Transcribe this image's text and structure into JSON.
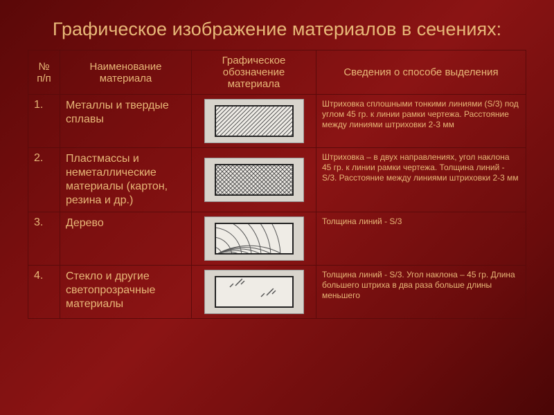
{
  "title": "Графическое изображение материалов в сечениях:",
  "colors": {
    "title_text": "#e8b878",
    "cell_text": "#e8b878",
    "border": "#5a0a0a",
    "swatch_bg": "#efece6",
    "swatch_frame": "#d8d4cc",
    "swatch_border": "#222222",
    "hatch_line": "#555555"
  },
  "columns": [
    "№ п/п",
    "Наименование материала",
    "Графическое обозначение материала",
    "Сведения о способе выделения"
  ],
  "rows": [
    {
      "num": "1.",
      "name": "Металлы и твердые сплавы",
      "pattern": "hatch45",
      "desc": "Штриховка сплошными тонкими линиями (S/3) под углом 45 гр. к линии рамки чертежа. Расстояние между линиями штриховки 2-3 мм"
    },
    {
      "num": "2.",
      "name": "Пластмассы и неметаллические материалы (картон, резина и др.)",
      "pattern": "crosshatch",
      "desc": "Штриховка – в двух направлениях, угол наклона 45 гр. к линии рамки чертежа. Толщина линий - S/3. Расстояние между линиями штриховки 2-3 мм"
    },
    {
      "num": "3.",
      "name": "Дерево",
      "pattern": "wood",
      "desc": "Толщина линий - S/3"
    },
    {
      "num": "4.",
      "name": "Стекло и другие светопрозрачные материалы",
      "pattern": "glass",
      "desc": "Толщина линий - S/3. Угол наклона – 45 гр. Длина большего штриха в два раза больше длины меньшего"
    }
  ],
  "patterns": {
    "hatch45": {
      "spacing": 6,
      "angle": 45,
      "stroke_width": 1
    },
    "crosshatch": {
      "spacing": 6,
      "angle": 45,
      "stroke_width": 1
    },
    "wood": {
      "arcs": 7,
      "stroke_width": 1
    },
    "glass": {
      "groups": 2,
      "long": 14,
      "short": 7,
      "gap": 3,
      "stroke_width": 1.5
    }
  }
}
